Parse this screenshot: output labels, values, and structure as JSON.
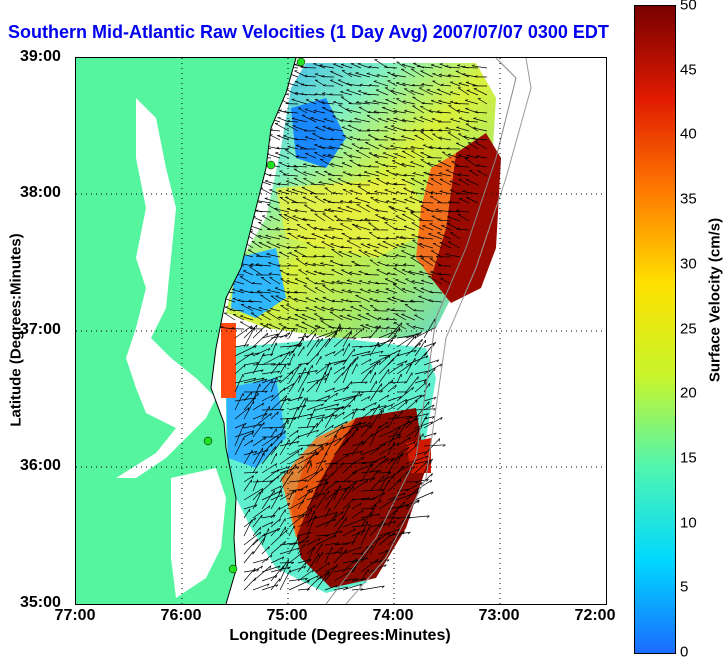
{
  "title": "Southern Mid-Atlantic Raw Velocities (1 Day Avg) 2007/07/07 0300 EDT",
  "map": {
    "x_axis_label": "Longitude (Degrees:Minutes)",
    "y_axis_label": "Latitude (Degrees:Minutes)",
    "x_ticks": [
      "77:00",
      "76:00",
      "75:00",
      "74:00",
      "73:00",
      "72:00"
    ],
    "y_ticks": [
      "39:00",
      "38:00",
      "37:00",
      "36:00",
      "35:00"
    ],
    "x_range": [
      -77,
      -72
    ],
    "y_range": [
      35,
      39
    ],
    "grid": "dotted",
    "land_color": "#55f5a0",
    "water_color": "#ffffff",
    "vector_color": "#000000",
    "coastline_color": "#000000"
  },
  "colorbar": {
    "label": "Surface Velocity (cm/s)",
    "ticks": [
      "0",
      "5",
      "10",
      "15",
      "20",
      "25",
      "30",
      "35",
      "40",
      "45",
      "50"
    ],
    "range": [
      0,
      50
    ],
    "colormap": [
      "#1a6cff",
      "#00d8ff",
      "#4ff5b0",
      "#c8f52a",
      "#ffe000",
      "#ff7a00",
      "#e01a00",
      "#7a0000"
    ]
  }
}
